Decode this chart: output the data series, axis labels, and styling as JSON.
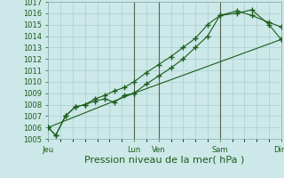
{
  "title": "",
  "xlabel": "Pression niveau de la mer( hPa )",
  "ylim": [
    1005,
    1017
  ],
  "yticks": [
    1005,
    1006,
    1007,
    1008,
    1009,
    1010,
    1011,
    1012,
    1013,
    1014,
    1015,
    1016,
    1017
  ],
  "xtick_positions": [
    0,
    3.5,
    4.5,
    7,
    9.5
  ],
  "xtick_labels": [
    "Jeu",
    "Lun",
    "Ven",
    "Sam",
    "Dim"
  ],
  "vline_positions": [
    3.5,
    4.5,
    7.0
  ],
  "background_color": "#cce8e8",
  "grid_color": "#aacfcf",
  "vline_color": "#556655",
  "line_color": "#1a5c1a",
  "line1_x": [
    0,
    0.3,
    0.7,
    1.1,
    1.5,
    1.9,
    2.3,
    2.7,
    3.1,
    3.5,
    4.0,
    4.5,
    5.0,
    5.5,
    6.0,
    6.5,
    7.0,
    7.7,
    8.3,
    9.0,
    9.5
  ],
  "line1_y": [
    1006.0,
    1005.3,
    1007.0,
    1007.8,
    1008.0,
    1008.3,
    1008.5,
    1008.2,
    1008.8,
    1009.0,
    1009.8,
    1010.5,
    1011.2,
    1012.0,
    1013.0,
    1014.0,
    1015.8,
    1016.0,
    1016.3,
    1015.0,
    1013.7
  ],
  "line2_x": [
    0,
    0.3,
    0.7,
    1.1,
    1.5,
    1.9,
    2.3,
    2.7,
    3.1,
    3.5,
    4.0,
    4.5,
    5.0,
    5.5,
    6.0,
    6.5,
    7.0,
    7.7,
    8.3,
    9.0,
    9.5
  ],
  "line2_y": [
    1006.0,
    1005.3,
    1007.0,
    1007.8,
    1008.0,
    1008.5,
    1008.8,
    1009.2,
    1009.5,
    1010.0,
    1010.8,
    1011.5,
    1012.2,
    1013.0,
    1013.8,
    1015.0,
    1015.8,
    1016.2,
    1015.8,
    1015.2,
    1014.8
  ],
  "line3_x": [
    0,
    3.5,
    9.5
  ],
  "line3_y": [
    1006.0,
    1009.0,
    1013.7
  ],
  "xlim": [
    0,
    9.5
  ],
  "marker": "+",
  "marker_size": 4.0,
  "line_width": 0.8,
  "xlabel_fontsize": 8,
  "tick_fontsize": 6
}
